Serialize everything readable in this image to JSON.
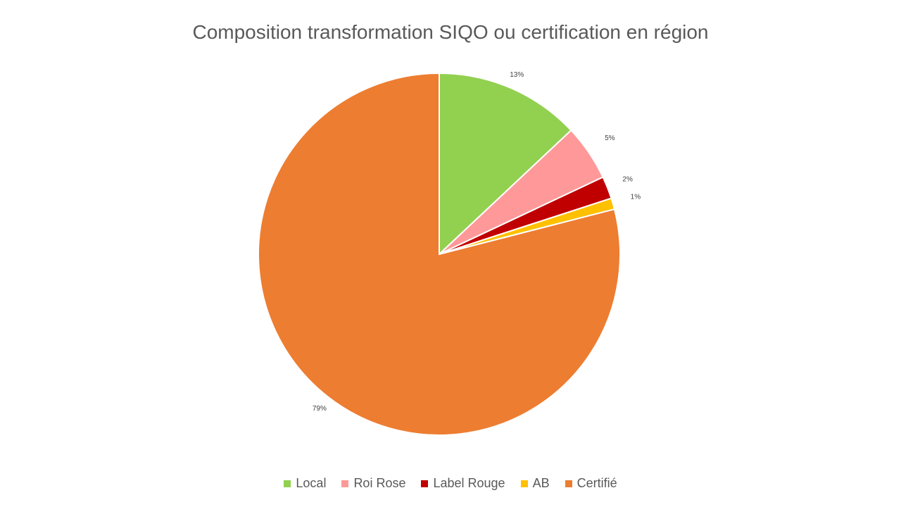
{
  "chart_data": {
    "type": "pie",
    "title": "Composition transformation SIQO ou certification en région",
    "categories": [
      "Local",
      "Roi Rose",
      "Label Rouge",
      "AB",
      "Certifié"
    ],
    "values": [
      13,
      5,
      2,
      1,
      79
    ],
    "data_labels": [
      "13%",
      "5%",
      "2%",
      "1%",
      "79%"
    ],
    "colors": [
      "#92D050",
      "#FF9999",
      "#C00000",
      "#FFC000",
      "#ED7D31"
    ],
    "start_angle": "12 o'clock",
    "direction": "clockwise",
    "legend_position": "bottom"
  }
}
